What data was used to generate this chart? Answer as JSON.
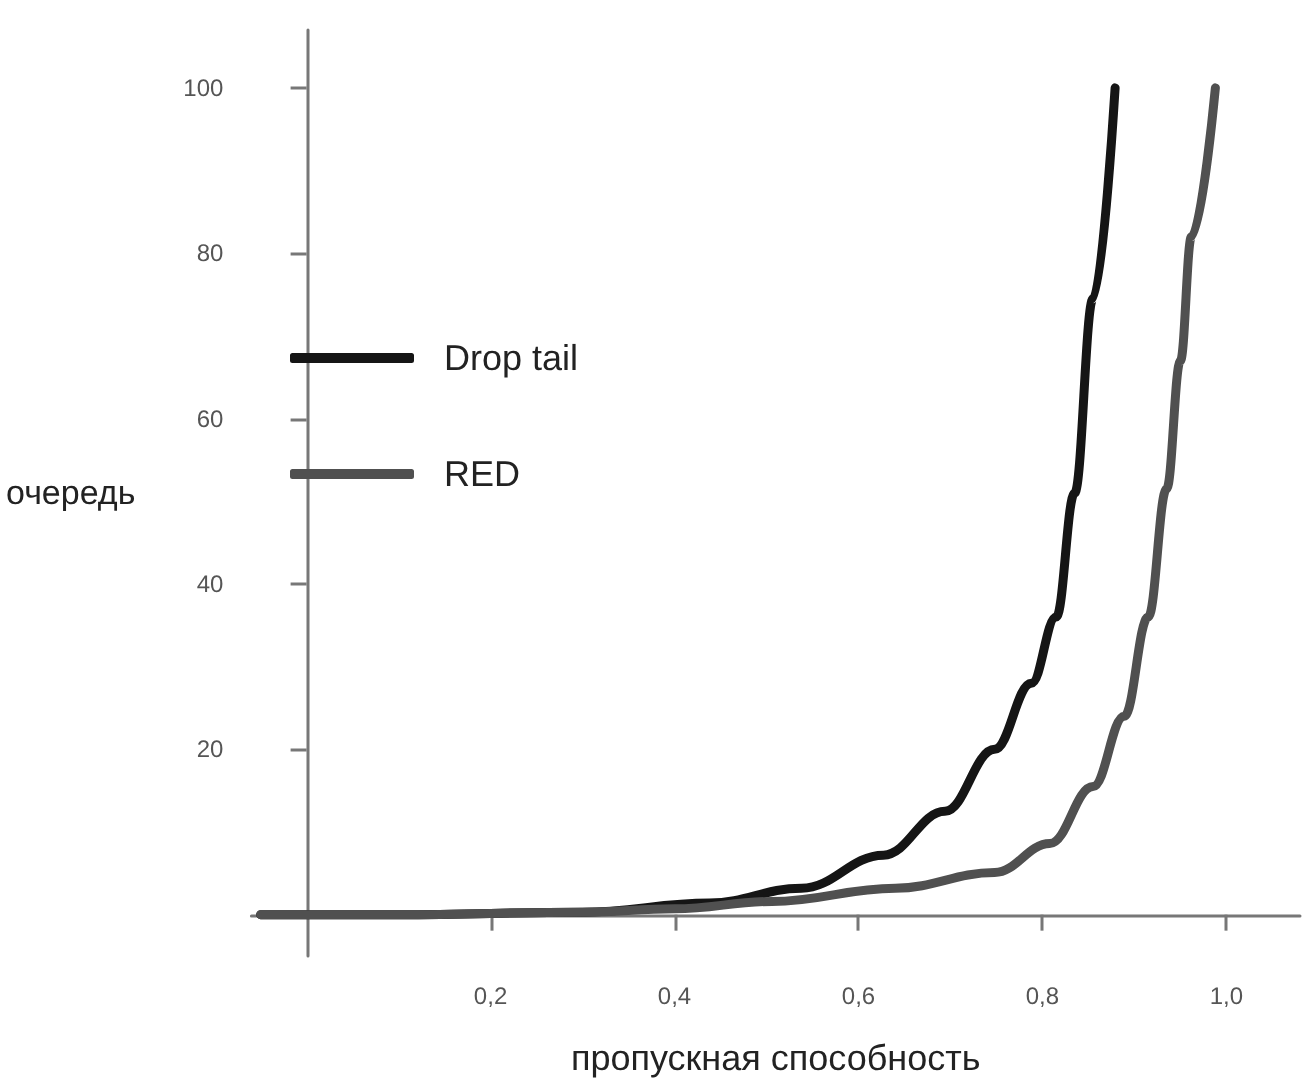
{
  "chart_data": {
    "type": "line",
    "xlabel": "пропускная способность",
    "ylabel": "очередь",
    "xlim": [
      -0.06,
      1.08
    ],
    "ylim": [
      -5,
      107
    ],
    "xticks": [
      {
        "value": 0.2,
        "label": "0,2"
      },
      {
        "value": 0.4,
        "label": "0,4"
      },
      {
        "value": 0.6,
        "label": "0,6"
      },
      {
        "value": 0.8,
        "label": "0,8"
      },
      {
        "value": 1.0,
        "label": "1,0"
      }
    ],
    "yticks": [
      20,
      40,
      60,
      80,
      100
    ],
    "grid": false,
    "legend": "left",
    "marker": "none",
    "line_style": "solid",
    "series": [
      {
        "name": "Drop tail",
        "color": "#151515",
        "x": [
          -0.05,
          0.1,
          0.3,
          0.438,
          0.538,
          0.627,
          0.694,
          0.748,
          0.788,
          0.815,
          0.835,
          0.855,
          0.879
        ],
        "values": [
          0,
          0,
          0.3,
          1.4,
          3.2,
          7.2,
          12.5,
          20,
          28,
          36,
          51,
          74.5,
          100
        ]
      },
      {
        "name": "RED",
        "color": "#505050",
        "x": [
          -0.05,
          0.1,
          0.3,
          0.4,
          0.506,
          0.64,
          0.748,
          0.808,
          0.855,
          0.889,
          0.915,
          0.935,
          0.95,
          0.962,
          0.988
        ],
        "values": [
          0,
          0,
          0.3,
          0.7,
          1.6,
          3.2,
          5.1,
          8.6,
          15.5,
          24,
          36,
          51.5,
          67,
          82,
          100
        ]
      }
    ]
  }
}
